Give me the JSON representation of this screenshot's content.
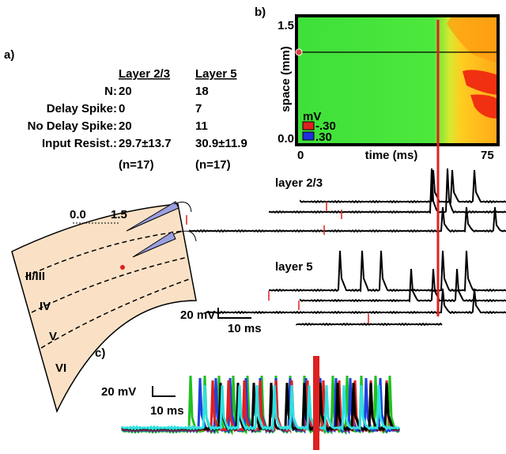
{
  "panel_a": {
    "label": "a)",
    "table": {
      "header": [
        "Layer 2/3",
        "Layer 5"
      ],
      "rows": [
        [
          "N:",
          "20",
          "18"
        ],
        [
          "Delay Spike:",
          "0",
          "7"
        ],
        [
          "No Delay Spike:",
          "20",
          "11"
        ],
        [
          "Input Resist.:",
          "29.7±13.7",
          "30.9±11.9"
        ]
      ],
      "n_row": [
        "(n=17)",
        "(n=17)"
      ]
    },
    "slice": {
      "scale": [
        "0.0",
        "1.5"
      ],
      "layers": [
        "II/III",
        "IV",
        "V",
        "VI"
      ]
    },
    "scale_bar": {
      "voltage": "20 mV",
      "time": "10 ms"
    }
  },
  "panel_b": {
    "label": "b)",
    "y_label": "space (mm)",
    "y_ticks": [
      "1.5",
      "0.0"
    ],
    "x_label": "time (ms)",
    "x_ticks": [
      "0",
      "75"
    ],
    "legend": {
      "unit": "mV",
      "entries": [
        "-.30",
        ".30"
      ]
    },
    "trace_labels": [
      "layer 2/3",
      "layer 5"
    ]
  },
  "panel_c": {
    "label": "c)",
    "scale_bar": {
      "voltage": "20 mV",
      "time": "10 ms"
    }
  }
}
